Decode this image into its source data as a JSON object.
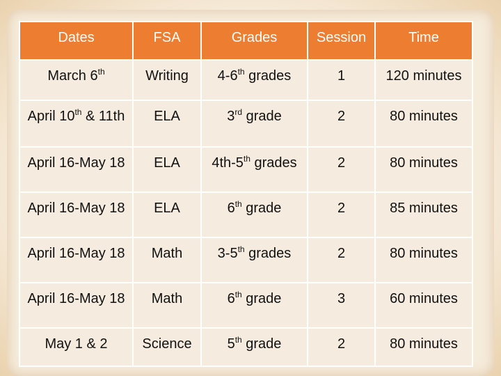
{
  "table": {
    "header": [
      "Dates",
      "FSA",
      "Grades",
      "Session",
      "Time"
    ],
    "rows": [
      [
        [
          "March 6",
          {
            "sup": "th"
          }
        ],
        "Writing",
        [
          "4-6",
          {
            "sup": "th"
          },
          " grades"
        ],
        "1",
        "120 minutes"
      ],
      [
        [
          "April 10",
          {
            "sup": "th"
          },
          " & 11th"
        ],
        "ELA",
        [
          "3",
          {
            "sup": "rd"
          },
          " grade"
        ],
        "2",
        "80 minutes"
      ],
      [
        "April 16-May 18",
        "ELA",
        [
          "4th-5",
          {
            "sup": "th"
          },
          " grades"
        ],
        "2",
        "80 minutes"
      ],
      [
        "April 16-May 18",
        "ELA",
        [
          "6",
          {
            "sup": "th"
          },
          " grade"
        ],
        "2",
        "85 minutes"
      ],
      [
        "April 16-May 18",
        "Math",
        [
          "3-5",
          {
            "sup": "th"
          },
          " grades"
        ],
        "2",
        "80 minutes"
      ],
      [
        "April 16-May 18",
        "Math",
        [
          "6",
          {
            "sup": "th"
          },
          " grade"
        ],
        "3",
        "60 minutes"
      ],
      [
        "May 1 & 2",
        "Science",
        [
          "5",
          {
            "sup": "th"
          },
          " grade"
        ],
        "2",
        "80 minutes"
      ]
    ]
  }
}
